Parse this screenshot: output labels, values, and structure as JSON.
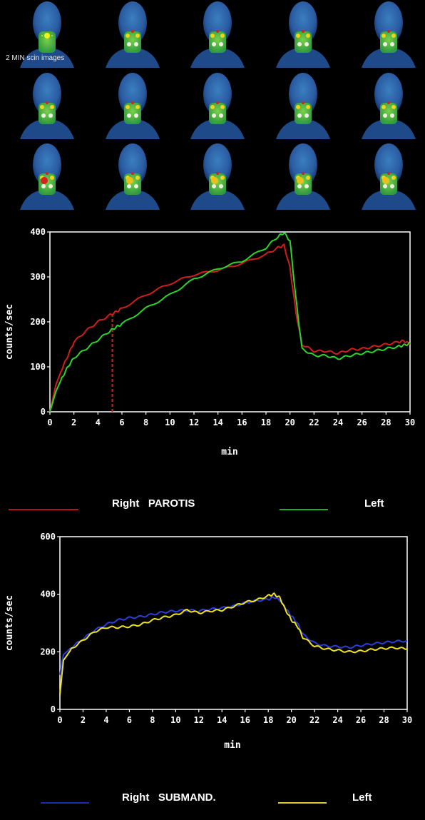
{
  "scan_panel": {
    "caption": "2 MIN scin images",
    "rows": 3,
    "cols": 5
  },
  "chart_data": [
    {
      "type": "line",
      "title": "",
      "xlabel": "min",
      "ylabel": "counts/sec",
      "xlim": [
        0,
        30
      ],
      "ylim": [
        0,
        400
      ],
      "xticks": [
        "0",
        "2",
        "4",
        "6",
        "8",
        "10",
        "12",
        "14",
        "16",
        "18",
        "20",
        "22",
        "24",
        "26",
        "28",
        "30"
      ],
      "yticks": [
        "0",
        "100",
        "200",
        "300",
        "400"
      ],
      "grid": false,
      "marker_line": {
        "x": 5.2,
        "color": "#cc2020",
        "style": "dashed"
      },
      "series": [
        {
          "name": "Right PAROTIS",
          "color": "#d01e1e",
          "x": [
            0,
            0.5,
            1,
            1.5,
            2,
            3,
            4,
            5,
            5.5,
            6,
            8,
            10,
            12,
            14,
            16,
            18,
            19,
            19.5,
            20,
            20.5,
            21,
            22,
            23,
            24,
            25,
            26,
            27,
            28,
            29,
            29.5,
            30
          ],
          "y": [
            0,
            60,
            95,
            125,
            155,
            180,
            200,
            215,
            222,
            230,
            260,
            285,
            305,
            315,
            330,
            350,
            365,
            370,
            320,
            220,
            150,
            135,
            135,
            130,
            138,
            140,
            145,
            150,
            155,
            158,
            150
          ]
        },
        {
          "name": "Left",
          "color": "#2ad42a",
          "x": [
            0,
            0.5,
            1,
            1.5,
            2,
            3,
            4,
            5,
            5.5,
            6,
            8,
            10,
            12,
            14,
            16,
            18,
            19,
            19.5,
            20,
            20.5,
            21,
            22,
            23,
            24,
            25,
            26,
            27,
            28,
            29,
            29.5,
            30
          ],
          "y": [
            0,
            45,
            75,
            100,
            120,
            140,
            160,
            180,
            188,
            195,
            230,
            260,
            295,
            318,
            335,
            365,
            390,
            398,
            380,
            250,
            140,
            125,
            125,
            118,
            125,
            130,
            135,
            140,
            145,
            148,
            152
          ]
        }
      ],
      "legend": {
        "placement": "bottom",
        "items": [
          {
            "label": "Right   PAROTIS",
            "color": "#b01818"
          },
          {
            "label": "Left",
            "color": "#20b020"
          }
        ]
      }
    },
    {
      "type": "line",
      "title": "",
      "xlabel": "min",
      "ylabel": "counts/sec",
      "xlim": [
        0,
        30
      ],
      "ylim": [
        0,
        600
      ],
      "xticks": [
        "0",
        "2",
        "4",
        "6",
        "8",
        "10",
        "12",
        "14",
        "16",
        "18",
        "20",
        "22",
        "24",
        "26",
        "28",
        "30"
      ],
      "yticks": [
        "0",
        "200",
        "400",
        "600"
      ],
      "grid": false,
      "series": [
        {
          "name": "Right SUBMAND.",
          "color": "#2b3fd8",
          "x": [
            0,
            0.3,
            1,
            2,
            3,
            4,
            5,
            6,
            7,
            8,
            9,
            10,
            11,
            12,
            13,
            14,
            15,
            16,
            17,
            18,
            18.5,
            19,
            19.5,
            20,
            20.5,
            21,
            22,
            23,
            24,
            25,
            26,
            27,
            28,
            29,
            30
          ],
          "y": [
            120,
            190,
            215,
            245,
            275,
            295,
            310,
            318,
            322,
            330,
            338,
            342,
            345,
            342,
            348,
            352,
            358,
            370,
            378,
            382,
            390,
            380,
            350,
            325,
            300,
            260,
            230,
            220,
            218,
            215,
            222,
            228,
            232,
            236,
            238
          ]
        },
        {
          "name": "Left",
          "color": "#f0e21c",
          "x": [
            0,
            0.3,
            1,
            2,
            3,
            4,
            5,
            6,
            7,
            8,
            9,
            10,
            11,
            12,
            13,
            14,
            15,
            16,
            17,
            18,
            18.5,
            19,
            19.5,
            20,
            20.5,
            21,
            22,
            23,
            24,
            25,
            26,
            27,
            28,
            29,
            30
          ],
          "y": [
            50,
            170,
            210,
            240,
            270,
            285,
            285,
            288,
            295,
            310,
            320,
            328,
            345,
            335,
            342,
            345,
            358,
            372,
            380,
            395,
            400,
            388,
            345,
            310,
            290,
            250,
            220,
            210,
            205,
            200,
            202,
            208,
            212,
            214,
            210
          ]
        }
      ],
      "legend": {
        "placement": "bottom",
        "items": [
          {
            "label": "Right   SUBMAND.",
            "color": "#1c2bb0"
          },
          {
            "label": "Left",
            "color": "#d8cc30"
          }
        ]
      }
    }
  ]
}
